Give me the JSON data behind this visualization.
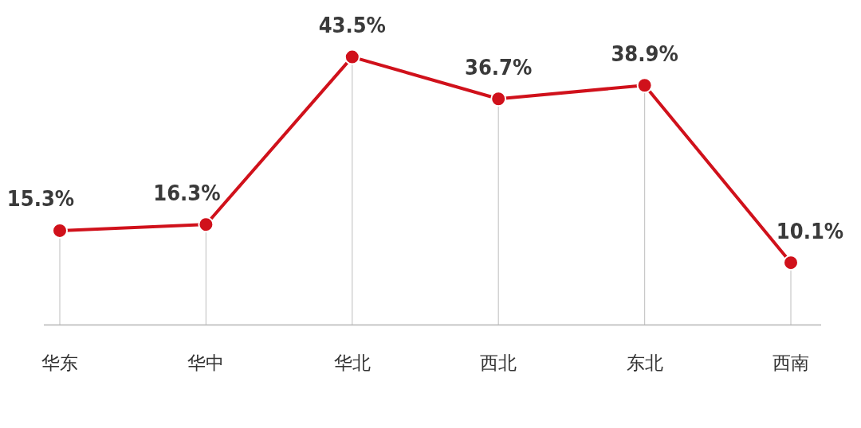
{
  "chart_data": {
    "type": "line",
    "categories": [
      "华东",
      "华中",
      "华北",
      "西北",
      "东北",
      "西南"
    ],
    "series": [
      {
        "color": "#d0111b",
        "values": [
          15.3,
          16.3,
          43.5,
          36.7,
          38.9,
          10.1
        ],
        "value_labels": [
          "15.3%",
          "16.3%",
          "43.5%",
          "36.7%",
          "38.9%",
          "10.1%"
        ]
      }
    ],
    "marker": "circle",
    "line_style": "solid",
    "grid": "x",
    "legend": false,
    "tick_labels": "x"
  }
}
